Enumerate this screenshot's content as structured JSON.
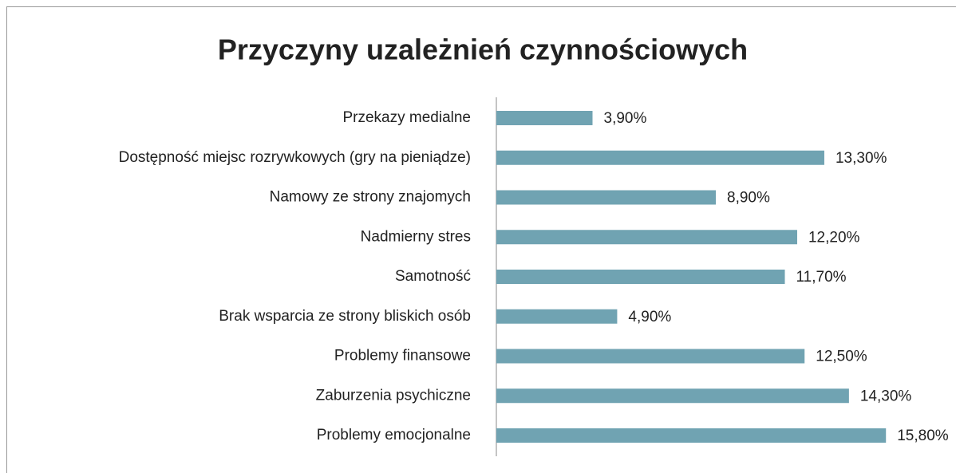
{
  "chart_data": {
    "type": "bar",
    "orientation": "horizontal",
    "title": "Przyczyny uzależnień czynnościowych",
    "categories": [
      "Przekazy medialne",
      "Dostępność miejsc rozrywkowych (gry na pieniądze)",
      "Namowy ze strony znajomych",
      "Nadmierny stres",
      "Samotność",
      "Brak wsparcia ze strony bliskich osób",
      "Problemy finansowe",
      "Zaburzenia psychiczne",
      "Problemy emocjonalne"
    ],
    "values": [
      3.9,
      13.3,
      8.9,
      12.2,
      11.7,
      4.9,
      12.5,
      14.3,
      15.8
    ],
    "value_labels": [
      "3,90%",
      "13,30%",
      "8,90%",
      "12,20%",
      "11,70%",
      "4,90%",
      "12,50%",
      "14,30%",
      "15,80%"
    ],
    "color": "#70a3b2"
  }
}
